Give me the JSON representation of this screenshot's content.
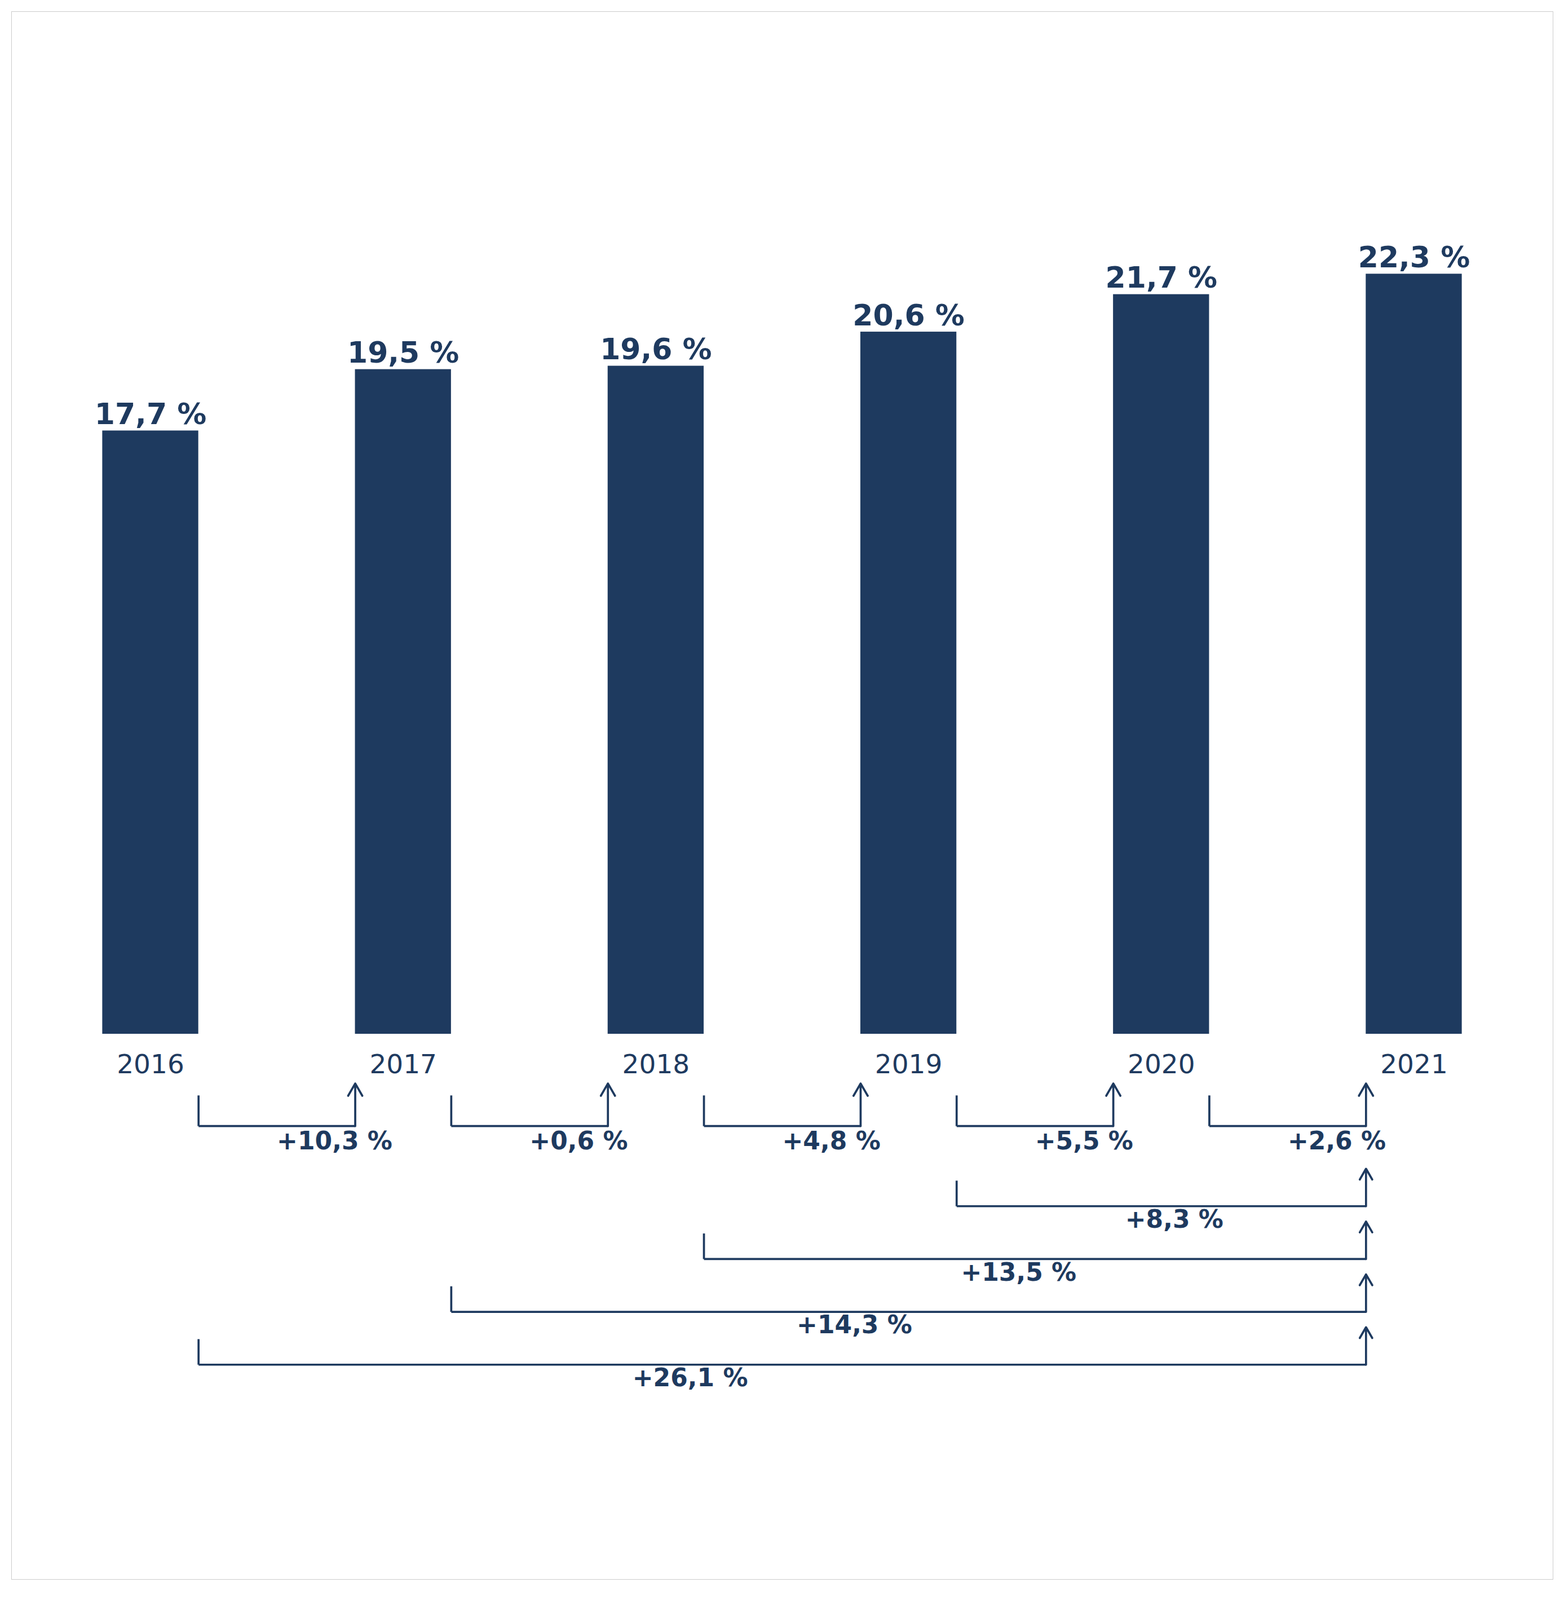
{
  "chart_data": {
    "type": "bar",
    "categories": [
      "2016",
      "2017",
      "2018",
      "2019",
      "2020",
      "2021"
    ],
    "values": [
      17.7,
      19.5,
      19.6,
      20.6,
      21.7,
      22.3
    ],
    "value_labels": [
      "17,7 %",
      "19,5 %",
      "19,6 %",
      "20,6 %",
      "21,7 %",
      "22,3 %"
    ],
    "data_labels": true,
    "color": "#1e3a5f",
    "ylim": [
      -16.0,
      30.0
    ],
    "tick_labels": false,
    "annotations": [
      {
        "from": "2016",
        "to": "2017",
        "label": "+10,3 %"
      },
      {
        "from": "2017",
        "to": "2018",
        "label": "+0,6 %"
      },
      {
        "from": "2018",
        "to": "2019",
        "label": "+4,8 %"
      },
      {
        "from": "2019",
        "to": "2020",
        "label": "+5,5 %"
      },
      {
        "from": "2020",
        "to": "2021",
        "label": "+2,6 %"
      },
      {
        "from": "2019",
        "to": "2021",
        "label": "+8,3 %"
      },
      {
        "from": "2018",
        "to": "2021",
        "label": "+13,5 %"
      },
      {
        "from": "2017",
        "to": "2021",
        "label": "+14,3 %"
      },
      {
        "from": "2016",
        "to": "2021",
        "label": "+26,1 %"
      }
    ]
  }
}
